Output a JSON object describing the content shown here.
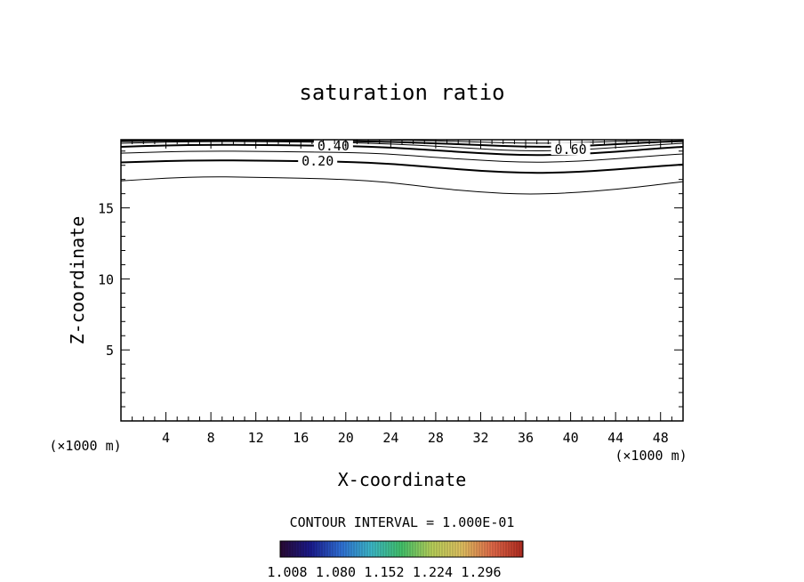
{
  "chart_data": {
    "type": "contour",
    "title": "saturation ratio",
    "xlabel": "X-coordinate",
    "ylabel": "Z-coordinate",
    "x_unit": "(×1000 m)",
    "x_unit_right": "(×1000 m)",
    "xlim": [
      0,
      50
    ],
    "ylim": [
      0,
      19.8
    ],
    "x_ticks": [
      4,
      8,
      12,
      16,
      20,
      24,
      28,
      32,
      36,
      40,
      44,
      48
    ],
    "y_ticks": [
      5,
      10,
      15
    ],
    "grid": false,
    "contour_interval_text": "CONTOUR INTERVAL = 1.000E-01",
    "contour_labels": [
      {
        "text": "0.40",
        "x": 18.9,
        "z": 19.35
      },
      {
        "text": "0.20",
        "x": 17.5,
        "z": 18.3
      },
      {
        "text": "0.60",
        "x": 40.0,
        "z": 19.1
      }
    ],
    "contours": [
      {
        "level": 0.1,
        "points": [
          [
            0,
            16.9
          ],
          [
            4,
            17.1
          ],
          [
            8,
            17.2
          ],
          [
            12,
            17.15
          ],
          [
            16,
            17.1
          ],
          [
            20,
            17.0
          ],
          [
            24,
            16.8
          ],
          [
            28,
            16.4
          ],
          [
            32,
            16.1
          ],
          [
            36,
            15.95
          ],
          [
            40,
            16.05
          ],
          [
            44,
            16.3
          ],
          [
            48,
            16.65
          ],
          [
            50,
            16.85
          ]
        ]
      },
      {
        "level": 0.2,
        "points": [
          [
            0,
            18.2
          ],
          [
            4,
            18.3
          ],
          [
            8,
            18.35
          ],
          [
            12,
            18.33
          ],
          [
            16,
            18.3
          ],
          [
            20,
            18.25
          ],
          [
            24,
            18.1
          ],
          [
            28,
            17.85
          ],
          [
            32,
            17.6
          ],
          [
            36,
            17.45
          ],
          [
            40,
            17.5
          ],
          [
            44,
            17.7
          ],
          [
            48,
            17.95
          ],
          [
            50,
            18.05
          ]
        ]
      },
      {
        "level": 0.3,
        "points": [
          [
            0,
            18.85
          ],
          [
            4,
            18.95
          ],
          [
            8,
            19.0
          ],
          [
            12,
            18.98
          ],
          [
            16,
            18.95
          ],
          [
            20,
            18.9
          ],
          [
            24,
            18.8
          ],
          [
            28,
            18.55
          ],
          [
            32,
            18.35
          ],
          [
            36,
            18.2
          ],
          [
            40,
            18.25
          ],
          [
            44,
            18.45
          ],
          [
            48,
            18.7
          ],
          [
            50,
            18.8
          ]
        ]
      },
      {
        "level": 0.4,
        "points": [
          [
            0,
            19.3
          ],
          [
            4,
            19.4
          ],
          [
            8,
            19.45
          ],
          [
            12,
            19.43
          ],
          [
            16,
            19.4
          ],
          [
            20,
            19.36
          ],
          [
            24,
            19.25
          ],
          [
            28,
            19.05
          ],
          [
            32,
            18.85
          ],
          [
            36,
            18.7
          ],
          [
            40,
            18.75
          ],
          [
            44,
            18.95
          ],
          [
            48,
            19.2
          ],
          [
            50,
            19.3
          ]
        ]
      },
      {
        "level": 0.5,
        "points": [
          [
            0,
            19.55
          ],
          [
            4,
            19.63
          ],
          [
            8,
            19.67
          ],
          [
            12,
            19.66
          ],
          [
            16,
            19.64
          ],
          [
            20,
            19.6
          ],
          [
            24,
            19.5
          ],
          [
            28,
            19.35
          ],
          [
            32,
            19.15
          ],
          [
            36,
            19.0
          ],
          [
            40,
            19.05
          ],
          [
            44,
            19.25
          ],
          [
            48,
            19.45
          ],
          [
            50,
            19.55
          ]
        ]
      },
      {
        "level": 0.6,
        "points": [
          [
            0,
            19.7
          ],
          [
            8,
            19.76
          ],
          [
            16,
            19.74
          ],
          [
            24,
            19.65
          ],
          [
            28,
            19.55
          ],
          [
            32,
            19.42
          ],
          [
            36,
            19.3
          ],
          [
            40,
            19.32
          ],
          [
            44,
            19.48
          ],
          [
            48,
            19.65
          ],
          [
            50,
            19.7
          ]
        ]
      },
      {
        "level": 0.7,
        "points": [
          [
            24,
            19.78
          ],
          [
            28,
            19.72
          ],
          [
            32,
            19.63
          ],
          [
            36,
            19.55
          ],
          [
            40,
            19.57
          ],
          [
            44,
            19.68
          ],
          [
            48,
            19.78
          ]
        ]
      }
    ],
    "colorbar": {
      "tick_labels": [
        "1.008",
        "1.080",
        "1.152",
        "1.224",
        "1.296"
      ],
      "colors": [
        "#2a0a33",
        "#1a1a8c",
        "#2f6fd6",
        "#3cb8c8",
        "#42c26a",
        "#b8d05a",
        "#e0c060",
        "#e06848",
        "#b02a20"
      ]
    }
  }
}
